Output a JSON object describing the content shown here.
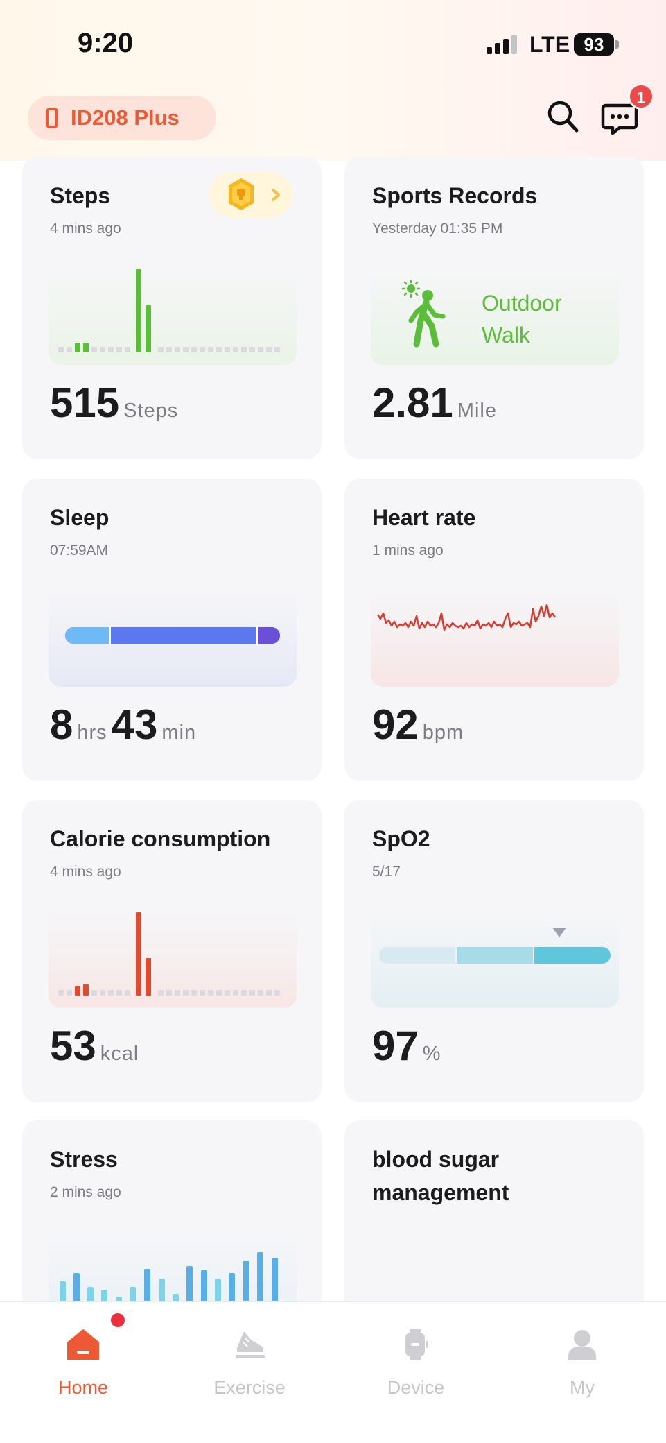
{
  "status_bar": {
    "time": "9:20",
    "network": "LTE",
    "battery": "93"
  },
  "header": {
    "device_name": "ID208 Plus",
    "notification_count": "1"
  },
  "cards": {
    "steps": {
      "title": "Steps",
      "subtitle": "4 mins ago",
      "value": "515",
      "unit": "Steps"
    },
    "sports": {
      "title": "Sports Records",
      "subtitle": "Yesterday 01:35 PM",
      "activity_line1": "Outdoor",
      "activity_line2": "Walk",
      "value": "2.81",
      "unit": "Mile"
    },
    "sleep": {
      "title": "Sleep",
      "subtitle": "07:59AM",
      "hours": "8",
      "hours_unit": "hrs",
      "minutes": "43",
      "minutes_unit": "min"
    },
    "heart": {
      "title": "Heart rate",
      "subtitle": "1 mins ago",
      "value": "92",
      "unit": "bpm"
    },
    "calorie": {
      "title": "Calorie consumption",
      "subtitle": "4 mins ago",
      "value": "53",
      "unit": "kcal"
    },
    "spo2": {
      "title": "SpO2",
      "subtitle": "5/17",
      "value": "97",
      "unit": "%"
    },
    "stress": {
      "title": "Stress",
      "subtitle": "2 mins ago"
    },
    "sugar": {
      "title": "blood sugar management"
    }
  },
  "nav": [
    {
      "label": "Home",
      "active": true
    },
    {
      "label": "Exercise",
      "active": false
    },
    {
      "label": "Device",
      "active": false
    },
    {
      "label": "My",
      "active": false
    }
  ],
  "colors": {
    "accent": "#ec5a35",
    "steps": "#5cbd3a",
    "calorie": "#e24a2e",
    "sleep_deep": "#5b78f0",
    "sleep_light": "#6fb9f5",
    "heart": "#d83a2e",
    "spo2": "#5fc6db",
    "stress": "#5aaee6"
  }
}
